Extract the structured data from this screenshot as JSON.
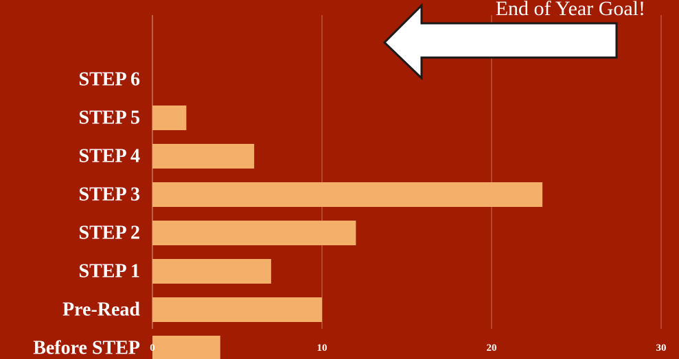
{
  "chart_data": {
    "type": "bar",
    "orientation": "horizontal",
    "categories": [
      "STEP 6",
      "STEP 5",
      "STEP 4",
      "STEP 3",
      "STEP 2",
      "STEP 1",
      "Pre-Read",
      "Before STEP"
    ],
    "values": [
      0,
      2,
      6,
      23,
      12,
      7,
      10,
      4
    ],
    "xlim": [
      0,
      30
    ],
    "xticks": [
      0,
      10,
      20,
      30
    ],
    "grid": true,
    "title": "",
    "xlabel": "",
    "ylabel": "",
    "annotation": {
      "text": "End of Year Goal!",
      "target": "STEP 6",
      "shape": "arrow-left"
    }
  },
  "colors": {
    "background": "#a11c00",
    "bar": "#f4b06a",
    "grid": "#c8745a",
    "text": "#ffffff",
    "arrow_fill": "#ffffff",
    "arrow_stroke": "#1a1a1a"
  }
}
